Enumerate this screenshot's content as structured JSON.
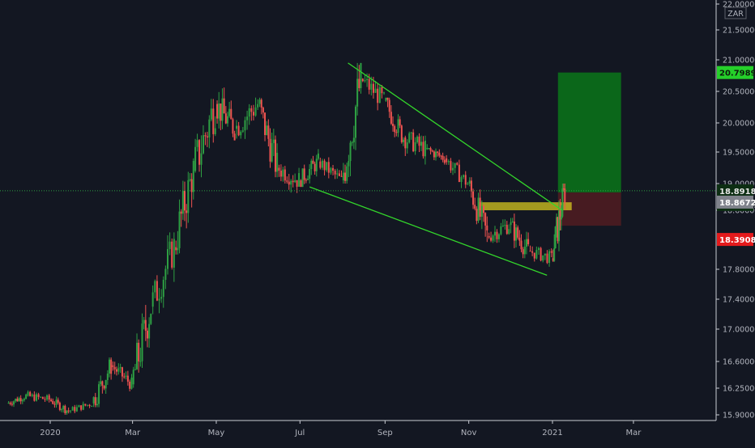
{
  "chart_data": {
    "type": "candlestick",
    "currency": "ZAR",
    "x_ticks": [
      "2020",
      "Mar",
      "May",
      "Jul",
      "Sep",
      "Nov",
      "2021",
      "Mar"
    ],
    "y_ticks": [
      "22.00000",
      "21.50000",
      "21.00000",
      "20.50000",
      "20.00000",
      "19.50000",
      "19.00000",
      "18.60000",
      "17.80000",
      "17.40000",
      "17.00000",
      "16.60000",
      "16.25000",
      "15.90000"
    ],
    "price_labels": {
      "target": "20.79892",
      "last": "18.89188",
      "countdown": "04:16:03",
      "entry": "18.86729",
      "stop": "18.39083"
    },
    "colors": {
      "background": "#131722",
      "up": "#26a69a",
      "up_body": "#2ea043",
      "down": "#ef5350",
      "trendline": "#33d62b",
      "support_zone": "#d6c71f",
      "target_zone": "#0b6b1a",
      "stop_zone": "#4a1b22"
    },
    "annotations": [
      {
        "type": "trendline",
        "name": "upper",
        "points": [
          [
            "2020-08-05",
            20.95
          ],
          [
            "2021-01-08",
            18.6
          ]
        ]
      },
      {
        "type": "trendline",
        "name": "lower",
        "points": [
          [
            "2020-07-08",
            18.95
          ],
          [
            "2020-12-28",
            17.72
          ]
        ]
      },
      {
        "type": "zone",
        "name": "support",
        "from": "2020-11-08",
        "to": "2021-01-15",
        "y": [
          18.6,
          18.72
        ]
      },
      {
        "type": "position",
        "name": "long",
        "from": "2021-01-05",
        "to": "2021-02-20",
        "entry": 18.86729,
        "target": 20.79892,
        "stop": 18.39083
      }
    ],
    "series": [
      {
        "values": [
          [
            "2019-12-01",
            16.05,
            16.22,
            16.0,
            16.15
          ],
          [
            "2019-12-15",
            16.15,
            16.3,
            16.05,
            16.1
          ],
          [
            "2020-01-01",
            16.1,
            16.15,
            15.9,
            15.95
          ],
          [
            "2020-01-15",
            15.95,
            16.1,
            15.9,
            16.05
          ],
          [
            "2020-02-01",
            16.05,
            16.65,
            16.0,
            16.55
          ],
          [
            "2020-02-15",
            16.55,
            16.6,
            16.2,
            16.3
          ],
          [
            "2020-03-01",
            16.3,
            17.5,
            16.25,
            17.3
          ],
          [
            "2020-03-15",
            17.3,
            18.3,
            17.2,
            18.1
          ],
          [
            "2020-04-01",
            18.1,
            19.4,
            18.0,
            19.2
          ],
          [
            "2020-04-15",
            19.2,
            20.85,
            19.1,
            20.3
          ],
          [
            "2020-05-01",
            20.3,
            20.75,
            19.7,
            19.9
          ],
          [
            "2020-05-15",
            19.9,
            20.7,
            19.7,
            20.3
          ],
          [
            "2020-06-01",
            20.3,
            20.4,
            19.1,
            19.25
          ],
          [
            "2020-06-15",
            19.25,
            19.55,
            18.85,
            19.05
          ],
          [
            "2020-07-01",
            19.05,
            19.55,
            18.95,
            19.35
          ],
          [
            "2020-07-15",
            19.35,
            19.45,
            18.95,
            19.05
          ],
          [
            "2020-08-01",
            19.05,
            20.95,
            19.0,
            20.7
          ],
          [
            "2020-08-15",
            20.7,
            20.9,
            20.2,
            20.35
          ],
          [
            "2020-09-01",
            20.35,
            20.4,
            19.6,
            19.75
          ],
          [
            "2020-09-15",
            19.75,
            20.05,
            19.3,
            19.55
          ],
          [
            "2020-10-01",
            19.55,
            19.7,
            19.3,
            19.4
          ],
          [
            "2020-10-15",
            19.4,
            19.45,
            18.9,
            19.0
          ],
          [
            "2020-11-01",
            19.0,
            19.1,
            18.15,
            18.25
          ],
          [
            "2020-11-15",
            18.25,
            18.55,
            18.05,
            18.4
          ],
          [
            "2020-12-01",
            18.4,
            18.6,
            17.95,
            18.05
          ],
          [
            "2020-12-15",
            18.05,
            18.15,
            17.75,
            17.95
          ],
          [
            "2021-01-01",
            17.95,
            19.0,
            17.9,
            18.89
          ]
        ]
      }
    ]
  }
}
